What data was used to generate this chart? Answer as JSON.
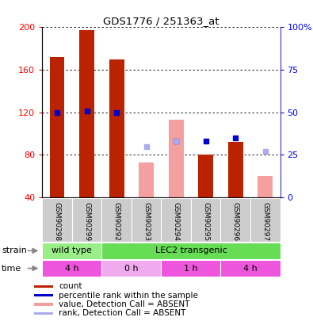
{
  "title": "GDS1776 / 251363_at",
  "samples": [
    "GSM90298",
    "GSM90299",
    "GSM90292",
    "GSM90293",
    "GSM90294",
    "GSM90295",
    "GSM90296",
    "GSM90297"
  ],
  "count_present": [
    172,
    197,
    170,
    null,
    null,
    80,
    92,
    null
  ],
  "count_absent": [
    null,
    null,
    null,
    73,
    113,
    null,
    null,
    60
  ],
  "rank_present": [
    50,
    51,
    50,
    null,
    null,
    null,
    null,
    null
  ],
  "rank_present2": [
    null,
    null,
    null,
    null,
    33,
    33,
    35,
    null
  ],
  "rank_absent": [
    null,
    null,
    null,
    30,
    33,
    null,
    null,
    27
  ],
  "ylim_left": [
    40,
    200
  ],
  "ylim_right": [
    0,
    100
  ],
  "left_ticks": [
    40,
    80,
    120,
    160,
    200
  ],
  "right_ticks": [
    0,
    25,
    50,
    75,
    100
  ],
  "right_tick_labels": [
    "0",
    "25",
    "50",
    "75",
    "100%"
  ],
  "strain_groups": [
    {
      "label": "wild type",
      "start": 0,
      "end": 2,
      "color": "#99ee88"
    },
    {
      "label": "LEC2 transgenic",
      "start": 2,
      "end": 8,
      "color": "#66dd55"
    }
  ],
  "time_groups": [
    {
      "label": "4 h",
      "start": 0,
      "end": 2,
      "color": "#ee55dd"
    },
    {
      "label": "0 h",
      "start": 2,
      "end": 4,
      "color": "#f0aaee"
    },
    {
      "label": "1 h",
      "start": 4,
      "end": 6,
      "color": "#ee55dd"
    },
    {
      "label": "4 h",
      "start": 6,
      "end": 8,
      "color": "#ee55dd"
    }
  ],
  "bar_width": 0.5,
  "count_color": "#bb2200",
  "count_absent_color": "#f4a0a0",
  "rank_color": "#0000cc",
  "rank_absent_color": "#aaaaee",
  "legend_items": [
    {
      "color": "#bb2200",
      "label": "count"
    },
    {
      "color": "#0000cc",
      "label": "percentile rank within the sample"
    },
    {
      "color": "#f4a0a0",
      "label": "value, Detection Call = ABSENT"
    },
    {
      "color": "#aaaaee",
      "label": "rank, Detection Call = ABSENT"
    }
  ]
}
